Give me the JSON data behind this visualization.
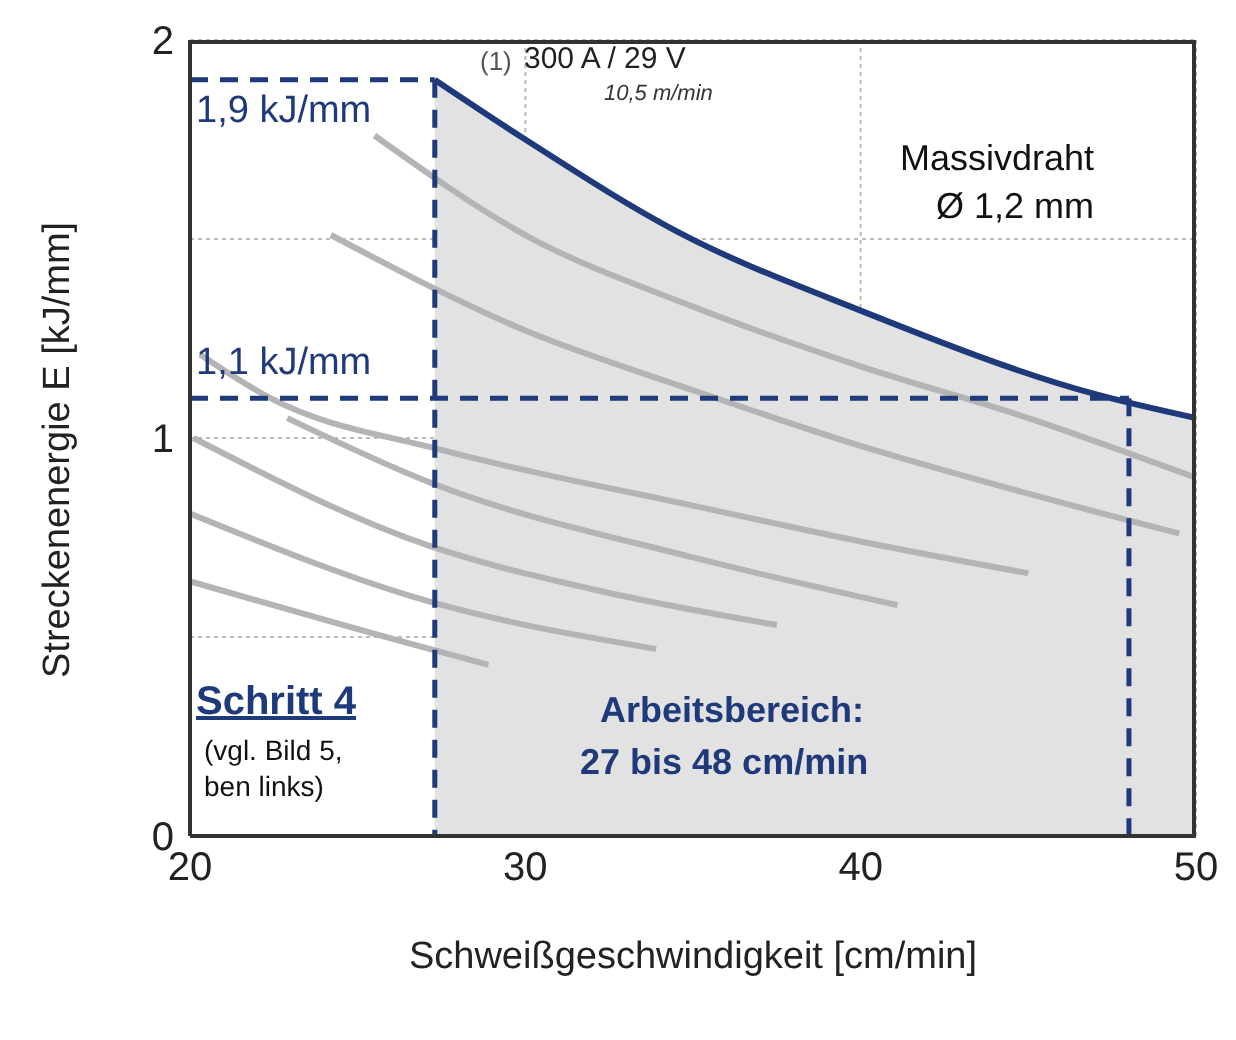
{
  "chart_data": {
    "type": "line",
    "xlabel": "Schweißgeschwindigkeit [cm/min]",
    "ylabel": "Streckenenergie E [kJ/mm]",
    "xlim": [
      20,
      50
    ],
    "ylim": [
      0,
      2
    ],
    "xticks": [
      20,
      30,
      40,
      50
    ],
    "yticks": [
      0,
      {
        "value": 0.5,
        "label": null
      },
      1,
      {
        "value": 1.5,
        "label": null
      },
      2
    ],
    "grid": true,
    "series": [
      {
        "color": "#b4b4b4",
        "x": [
          25.5,
          30,
          35,
          40,
          45,
          50
        ],
        "values": [
          1.76,
          1.51,
          1.33,
          1.18,
          1.05,
          0.9
        ]
      },
      {
        "color": "#b4b4b4",
        "x": [
          24.2,
          30,
          35,
          40,
          45,
          49.5
        ],
        "values": [
          1.51,
          1.27,
          1.12,
          0.98,
          0.86,
          0.76
        ]
      },
      {
        "color": "#b4b4b4",
        "x": [
          20.3,
          22.4,
          27.5,
          35,
          40,
          45
        ],
        "values": [
          1.21,
          1.1,
          0.97,
          0.83,
          0.74,
          0.66
        ]
      },
      {
        "color": "#b4b4b4",
        "x": [
          22.9,
          27.1,
          35,
          41.1
        ],
        "values": [
          1.05,
          0.89,
          0.7,
          0.58
        ]
      },
      {
        "color": "#b4b4b4",
        "x": [
          20.1,
          27.1,
          32,
          37.5
        ],
        "values": [
          1.0,
          0.73,
          0.62,
          0.53
        ]
      },
      {
        "color": "#b4b4b4",
        "x": [
          20,
          27.1,
          33.9
        ],
        "values": [
          0.81,
          0.59,
          0.47
        ]
      },
      {
        "color": "#b4b4b4",
        "x": [
          20,
          26.7,
          28.9
        ],
        "values": [
          0.64,
          0.48,
          0.43
        ]
      },
      {
        "type": "area",
        "color": "#1f3a7a",
        "x": [
          27.3,
          30,
          34.5,
          40,
          47,
          50
        ],
        "values": [
          1.9,
          1.75,
          1.52,
          1.32,
          1.11,
          1.05
        ]
      },
      {
        "color": "#1f3a7a",
        "line_style": "dashed",
        "x": [
          20,
          27.3
        ],
        "values": [
          1.9,
          1.9
        ]
      },
      {
        "color": "#1f3a7a",
        "line_style": "dashed",
        "x": [
          20,
          48
        ],
        "values": [
          1.1,
          1.1
        ]
      },
      {
        "color": "#1f3a7a",
        "line_style": "dashed",
        "x": [
          27.3,
          27.3
        ],
        "values": [
          1.9,
          0
        ]
      },
      {
        "color": "#1f3a7a",
        "line_style": "dashed",
        "x": [
          48,
          48
        ],
        "values": [
          1.1,
          0
        ]
      }
    ],
    "annotations": [
      "1,9 kJ/mm",
      "1,1 kJ/mm",
      "(1)",
      "300 A / 29 V",
      "10,5 m/min",
      "Massivdraht",
      "Ø 1,2 mm",
      "Schritt 4",
      "(vgl. Bild 5,",
      "ben links)",
      "Arbeitsbereich:",
      "27 bis 48 cm/min"
    ]
  }
}
